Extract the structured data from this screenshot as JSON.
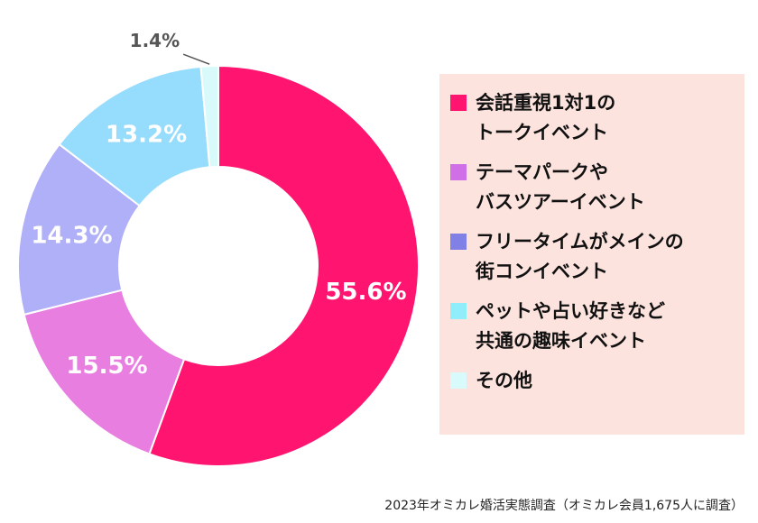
{
  "chart_data": {
    "type": "pie",
    "donut": true,
    "title": "",
    "categories": [
      "会話重視1対1の\nトークイベント",
      "テーマパークや\nバスツアーイベント",
      "フリータイムがメインの\n街コンイベント",
      "ペットや占い好きなど\n共通の趣味イベント",
      "その他"
    ],
    "values": [
      55.6,
      15.5,
      14.3,
      13.2,
      1.4
    ],
    "value_labels": [
      "55.6%",
      "15.5%",
      "14.3%",
      "13.2%",
      "1.4%"
    ],
    "colors": [
      "#ff1470",
      "#e87fe0",
      "#b0b0f8",
      "#96dcfc",
      "#d8fafa"
    ],
    "legend_colors": [
      "#ff1470",
      "#d070e6",
      "#8080e6",
      "#90eefa",
      "#d8fafa"
    ],
    "legend_position": "right"
  },
  "source_note": "2023年オミカレ婚活実態調査（オミカレ会員1,675人に調査）"
}
